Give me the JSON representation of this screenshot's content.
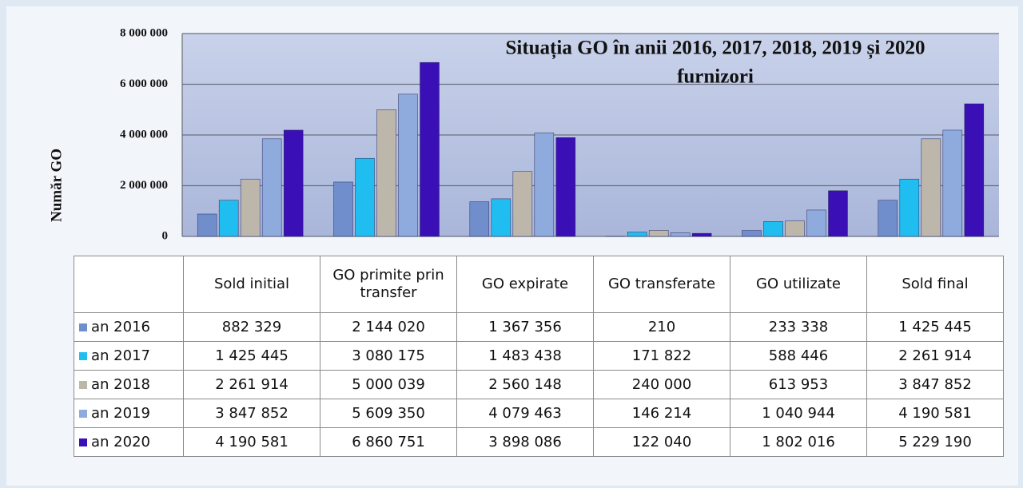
{
  "chart_data": {
    "type": "bar",
    "title": "Situația GO în anii 2016, 2017, 2018, 2019 și 2020",
    "subtitle": "furnizori",
    "y_label": "Număr GO",
    "categories": [
      "Sold initial",
      "GO primite prin transfer",
      "GO expirate",
      "GO transferate",
      "GO utilizate",
      "Sold final"
    ],
    "series": [
      {
        "name": "an 2016",
        "color": "#6f8ecb",
        "values": [
          882329,
          2144020,
          1367356,
          210,
          233338,
          1425445
        ],
        "value_labels": [
          "882 329",
          "2 144 020",
          "1 367 356",
          "210",
          "233 338",
          "1 425 445"
        ]
      },
      {
        "name": "an 2017",
        "color": "#1fbdf0",
        "values": [
          1425445,
          3080175,
          1483438,
          171822,
          588446,
          2261914
        ],
        "value_labels": [
          "1 425 445",
          "3 080 175",
          "1 483 438",
          "171 822",
          "588 446",
          "2 261 914"
        ]
      },
      {
        "name": "an 2018",
        "color": "#bdb7ab",
        "values": [
          2261914,
          5000039,
          2560148,
          240000,
          613953,
          3847852
        ],
        "value_labels": [
          "2 261 914",
          "5 000 039",
          "2 560 148",
          "240 000",
          "613 953",
          "3 847 852"
        ]
      },
      {
        "name": "an 2019",
        "color": "#8faadc",
        "values": [
          3847852,
          5609350,
          4079463,
          146214,
          1040944,
          4190581
        ],
        "value_labels": [
          "3 847 852",
          "5 609 350",
          "4 079 463",
          "146 214",
          "1 040 944",
          "4 190 581"
        ]
      },
      {
        "name": "an 2020",
        "color": "#3a0fb5",
        "values": [
          4190581,
          6860751,
          3898086,
          122040,
          1802016,
          5229190
        ],
        "value_labels": [
          "4 190 581",
          "6 860 751",
          "3 898 086",
          "122 040",
          "1 802 016",
          "5 229 190"
        ]
      }
    ],
    "ylim": [
      0,
      8000000
    ],
    "yticks": [
      0,
      {
        "value": 2000000,
        "label": "2 000 000"
      },
      {
        "value": 4000000,
        "label": "4 000 000"
      },
      {
        "value": 6000000,
        "label": "6 000 000"
      },
      {
        "value": 8000000,
        "label": "8 000 000"
      }
    ],
    "grid": true
  }
}
